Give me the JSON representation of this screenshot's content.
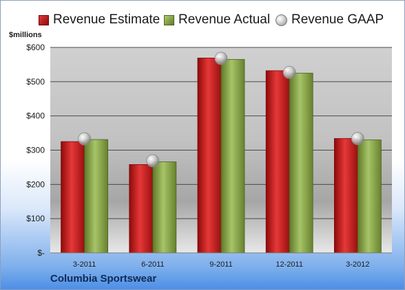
{
  "legend": {
    "estimate": "Revenue Estimate",
    "actual": "Revenue Actual",
    "gaap": "Revenue GAAP"
  },
  "ylabel": "$millions",
  "footer": "Columbia Sportswear",
  "colors": {
    "estimate": "#c41e1e",
    "actual": "#8aa64a",
    "gaap": "#c8c8c8"
  },
  "chart_data": {
    "type": "bar",
    "title": "",
    "xlabel": "",
    "ylabel": "$millions",
    "categories": [
      "3-2011",
      "6-2011",
      "9-2011",
      "12-2011",
      "3-2012"
    ],
    "series": [
      {
        "name": "Revenue Estimate",
        "type": "bar",
        "values": [
          325,
          258,
          569,
          532,
          334
        ]
      },
      {
        "name": "Revenue Actual",
        "type": "bar",
        "values": [
          331,
          266,
          565,
          525,
          330
        ]
      },
      {
        "name": "Revenue GAAP",
        "type": "scatter",
        "values": [
          333,
          269,
          568,
          527,
          334
        ]
      }
    ],
    "ylim": [
      0,
      600
    ],
    "yticks": [
      0,
      100,
      200,
      300,
      400,
      500,
      600
    ],
    "ytick_labels": [
      "$-",
      "$100",
      "$200",
      "$300",
      "$400",
      "$500",
      "$600"
    ],
    "grid": true,
    "legend_position": "top"
  }
}
